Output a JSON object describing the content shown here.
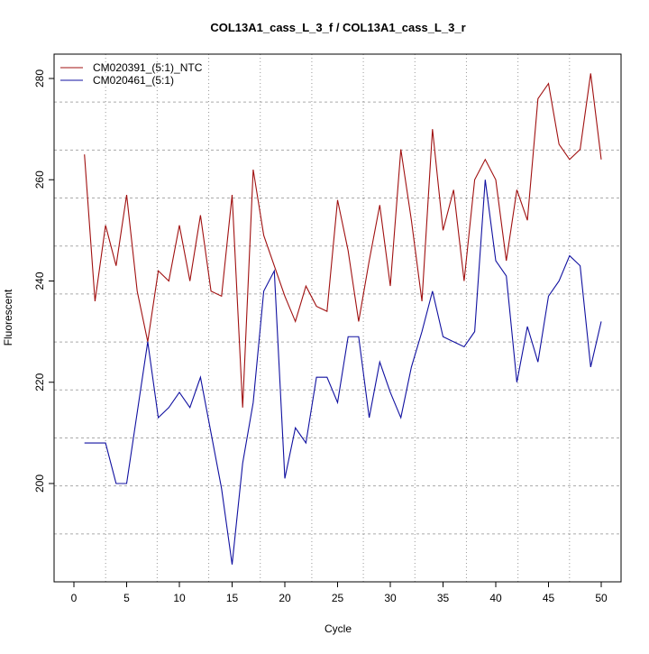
{
  "chart_data": {
    "type": "line",
    "title": "COL13A1_cass_L_3_f / COL13A1_cass_L_3_r",
    "xlabel": "Cycle",
    "ylabel": "Fluorescent",
    "xlim": [
      -2,
      52
    ],
    "ylim": [
      181,
      285
    ],
    "xticks": [
      0,
      5,
      10,
      15,
      20,
      25,
      30,
      35,
      40,
      45,
      50
    ],
    "yticks": [
      200,
      220,
      240,
      260,
      280
    ],
    "grid": true,
    "legend_position": "top-left",
    "x": [
      1,
      2,
      3,
      4,
      5,
      6,
      7,
      8,
      9,
      10,
      11,
      12,
      13,
      14,
      15,
      16,
      17,
      18,
      19,
      20,
      21,
      22,
      23,
      24,
      25,
      26,
      27,
      28,
      29,
      30,
      31,
      32,
      33,
      34,
      35,
      36,
      37,
      38,
      39,
      40,
      41,
      42,
      43,
      44,
      45,
      46,
      47,
      48,
      49,
      50
    ],
    "series": [
      {
        "name": "CM020391_(5:1)_NTC",
        "color": "#a01010",
        "values": [
          265,
          236,
          251,
          243,
          257,
          238,
          228,
          242,
          240,
          251,
          240,
          253,
          238,
          237,
          257,
          215,
          262,
          249,
          243,
          237,
          232,
          239,
          235,
          234,
          256,
          246,
          232,
          244,
          255,
          239,
          266,
          252,
          236,
          270,
          250,
          258,
          240,
          260,
          264,
          260,
          244,
          258,
          252,
          276,
          279,
          267,
          264,
          266,
          281,
          264
        ]
      },
      {
        "name": "CM020461_(5:1)",
        "color": "#1010a0",
        "values": [
          208,
          208,
          208,
          200,
          200,
          214,
          228,
          213,
          215,
          218,
          215,
          221,
          210,
          199,
          184,
          204,
          216,
          238,
          242,
          201,
          211,
          208,
          221,
          221,
          216,
          229,
          229,
          213,
          224,
          218,
          213,
          223,
          230,
          238,
          229,
          228,
          227,
          230,
          260,
          244,
          241,
          220,
          231,
          224,
          237,
          240,
          245,
          243,
          223,
          232
        ]
      }
    ]
  }
}
